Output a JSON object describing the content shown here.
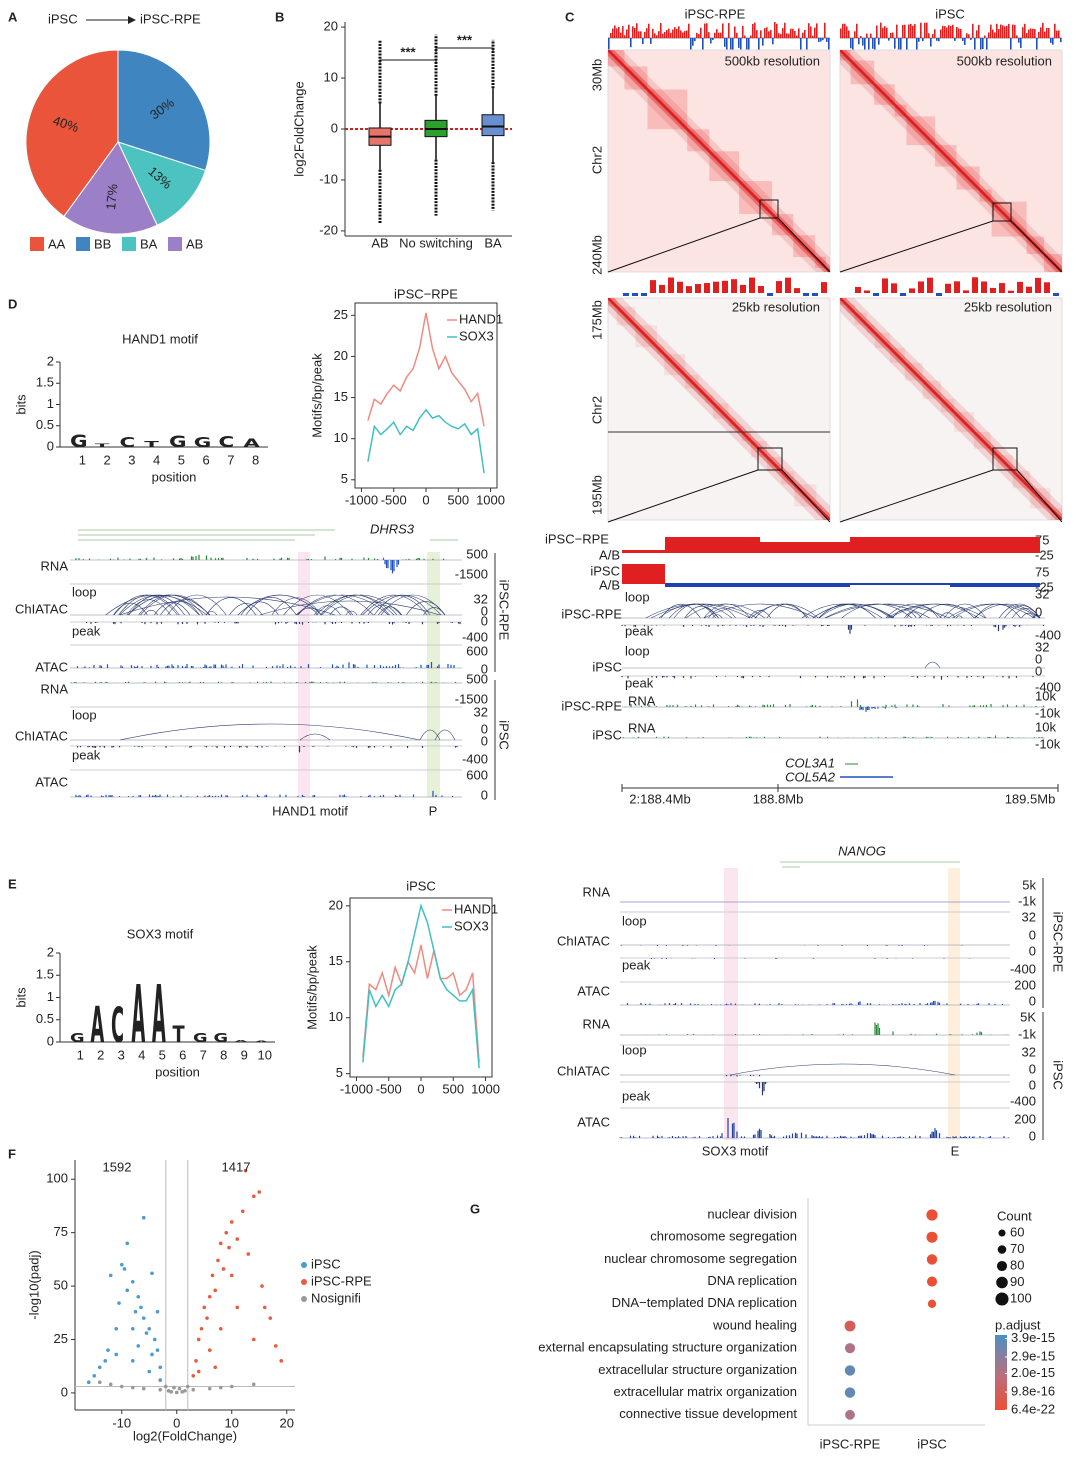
{
  "figure": {
    "panel_labels": [
      "A",
      "B",
      "C",
      "D",
      "E",
      "F",
      "G"
    ],
    "motifs": [
      {
        "title": "HAND1 motif",
        "ylabel": "bits",
        "xlabel": "position",
        "yticks": [
          0,
          0.5,
          1,
          1.5,
          2
        ],
        "positions": [
          1,
          2,
          3,
          4,
          5,
          6,
          7,
          8
        ],
        "letters": [
          "G",
          "T",
          "C",
          "T",
          "G",
          "G",
          "C",
          "A"
        ],
        "heights": [
          0.45,
          0.12,
          0.35,
          0.2,
          0.42,
          0.36,
          0.4,
          0.3
        ]
      },
      {
        "title": "SOX3 motif",
        "ylabel": "bits",
        "xlabel": "position",
        "yticks": [
          0,
          0.5,
          1,
          1.5,
          2
        ],
        "positions": [
          1,
          2,
          3,
          4,
          5,
          6,
          7,
          8,
          9,
          10
        ],
        "letters": [
          "G",
          "A",
          "C",
          "A",
          "A",
          "T",
          "G",
          "G",
          "A",
          "A"
        ],
        "heights": [
          0.3,
          1.25,
          1.2,
          2,
          2,
          0.55,
          0.3,
          0.3,
          0.06,
          0.05
        ]
      }
    ],
    "hic": {
      "columns": [
        "iPSC-RPE",
        "iPSC"
      ],
      "top": {
        "resolution": "500kb resolution",
        "start": "30Mb",
        "chr": "Chr2",
        "end": "240Mb"
      },
      "bottom": {
        "resolution": "25kb resolution",
        "start": "175Mb",
        "chr": "Chr2",
        "end": "195Mb"
      }
    },
    "tracks_c": {
      "left_labels": [
        "iPSC−RPE",
        "A/B",
        "iPSC",
        "A/B",
        "loop",
        "iPSC-RPE",
        "peak",
        "loop",
        "iPSC",
        "peak",
        "iPSC-RPE",
        "RNA",
        "iPSC",
        "RNA"
      ],
      "scale_labels": [
        "75",
        "-25",
        "75",
        "-25",
        "32",
        "0",
        "-400",
        "32",
        "0",
        "0",
        "-400",
        "10k",
        "-10k",
        "10k",
        "-10k"
      ],
      "genes": [
        "COL3A1",
        "COL5A2"
      ],
      "axis_labels": [
        "2:188.4Mb",
        "188.8Mb",
        "189.5Mb"
      ]
    },
    "tracks_d": {
      "gene": "DHRS3",
      "row_labels": [
        "RNA",
        "loop",
        "ChIATAC",
        "peak",
        "ATAC",
        "RNA",
        "loop",
        "ChIATAC",
        "peak",
        "ATAC"
      ],
      "scale_labels": [
        "500",
        "-1500",
        "32",
        "0",
        "0",
        "-400",
        "600",
        "0",
        "500",
        "-1500",
        "32",
        "0",
        "0",
        "-400",
        "600",
        "0"
      ],
      "groups": [
        "iPSC-RPE",
        "iPSC"
      ],
      "highlights": [
        "HAND1 motif",
        "P"
      ]
    },
    "tracks_e": {
      "gene": "NANOG",
      "row_labels": [
        "RNA",
        "loop",
        "ChIATAC",
        "peak",
        "ATAC",
        "RNA",
        "loop",
        "ChIATAC",
        "peak",
        "ATAC"
      ],
      "scale_labels": [
        "5k",
        "-1k",
        "32",
        "0",
        "0",
        "-400",
        "200",
        "0",
        "5K",
        "-1k",
        "32",
        "0",
        "0",
        "-400",
        "200",
        "0"
      ],
      "groups": [
        "iPSC-RPE",
        "iPSC"
      ],
      "highlights": [
        "SOX3 motif",
        "E"
      ]
    }
  },
  "chart_data": [
    {
      "type": "pie",
      "title_from": "iPSC",
      "title_to": "iPSC-RPE",
      "categories": [
        "AA",
        "BB",
        "BA",
        "AB"
      ],
      "values": [
        40,
        30,
        13,
        17
      ],
      "value_labels": [
        "40%",
        "30%",
        "13%",
        "17%"
      ],
      "colors": [
        "#e9543a",
        "#3f86c0",
        "#4cc3c0",
        "#9b80c8"
      ]
    },
    {
      "type": "box",
      "ylabel": "log2FoldChange",
      "categories": [
        "AB",
        "No switching",
        "BA"
      ],
      "colors": [
        "#e8756a",
        "#2ca02c",
        "#6a8fd0"
      ],
      "q1": [
        -3.2,
        -1.5,
        -1.3
      ],
      "median": [
        -1.5,
        0,
        0.5
      ],
      "q3": [
        0.2,
        1.7,
        2.8
      ],
      "whisker_low": [
        -8,
        -6,
        -6.5
      ],
      "whisker_high": [
        5,
        6.5,
        8
      ],
      "min": [
        -18.5,
        -17,
        -16
      ],
      "max": [
        17.5,
        18.5,
        17.5
      ],
      "ylim": [
        -21,
        21
      ],
      "yticks": [
        -20,
        -10,
        0,
        10,
        20
      ],
      "reference_line": 0,
      "annotations": [
        "***",
        "***"
      ]
    },
    {
      "type": "line",
      "title": "iPSC−RPE",
      "ylabel": "Motifs/bp/peak",
      "x": [
        -900,
        -800,
        -700,
        -600,
        -500,
        -400,
        -300,
        -200,
        -100,
        0,
        100,
        200,
        300,
        400,
        500,
        600,
        700,
        800,
        900
      ],
      "series": [
        {
          "name": "HAND1",
          "color": "#f08a80",
          "values": [
            12.2,
            14.8,
            14.2,
            15.5,
            16.5,
            15.8,
            17.5,
            18.5,
            21,
            25.3,
            21,
            18.5,
            20,
            18,
            17,
            16,
            14.5,
            15.5,
            11.5
          ]
        },
        {
          "name": "SOX3",
          "color": "#40c0c0",
          "values": [
            7.2,
            11.5,
            10.5,
            11.2,
            12,
            10.5,
            11.5,
            11,
            12.5,
            13.5,
            12.5,
            12.8,
            12,
            11.5,
            11.2,
            11.8,
            10.5,
            11.2,
            5.8
          ]
        }
      ],
      "xlim": [
        -1100,
        1100
      ],
      "xticks": [
        -1000,
        -500,
        0,
        500,
        1000
      ],
      "ylim": [
        4,
        26.5
      ],
      "yticks": [
        5,
        10,
        15,
        20,
        25
      ]
    },
    {
      "type": "line",
      "title": "iPSC",
      "ylabel": "Motifs/bp/peak",
      "x": [
        -900,
        -800,
        -700,
        -600,
        -500,
        -400,
        -300,
        -200,
        -100,
        0,
        100,
        200,
        300,
        400,
        500,
        600,
        700,
        800,
        900
      ],
      "series": [
        {
          "name": "HAND1",
          "color": "#f08a80",
          "values": [
            6.5,
            13,
            12.5,
            14,
            12,
            14.5,
            13,
            15,
            14,
            16.5,
            13.5,
            16,
            13.5,
            13.5,
            14,
            12,
            12.5,
            14,
            6
          ]
        },
        {
          "name": "SOX3",
          "color": "#40c0c0",
          "values": [
            6,
            12.5,
            11,
            12,
            11,
            12.5,
            13,
            15,
            17.5,
            20,
            18.5,
            16,
            13.5,
            12.5,
            12,
            11.5,
            11.5,
            12.5,
            5.5
          ]
        }
      ],
      "xlim": [
        -1100,
        1100
      ],
      "xticks": [
        -1000,
        -500,
        0,
        500,
        1000
      ],
      "ylim": [
        4.7,
        20.7
      ],
      "yticks": [
        5,
        10,
        15,
        20
      ]
    },
    {
      "type": "scatter",
      "xlabel": "log2(FoldChange)",
      "ylabel": "-log10(padj)",
      "count_labels": [
        1592,
        1417
      ],
      "xlim": [
        -18.5,
        21.5
      ],
      "xticks": [
        -10,
        0,
        10,
        20
      ],
      "ylim": [
        -8,
        109
      ],
      "yticks": [
        0,
        25,
        50,
        75,
        100
      ],
      "cutoff_x": [
        -2,
        2
      ],
      "cutoff_y": 3,
      "series": [
        {
          "name": "iPSC",
          "color": "#4a9bd0",
          "x": [
            -3,
            -3.5,
            -4,
            -4.5,
            -5,
            -5.5,
            -6,
            -6.5,
            -7,
            -7.5,
            -8,
            -8,
            -9,
            -9.5,
            -10,
            -10.5,
            -11,
            -12,
            -12.5,
            -13,
            -14,
            -15,
            -16,
            -9,
            -6,
            -4.5,
            -3.5,
            -7,
            -11,
            -5,
            -8,
            -3
          ],
          "values": [
            12,
            20,
            25,
            18,
            30,
            28,
            35,
            40,
            45,
            38,
            52,
            30,
            48,
            58,
            60,
            42,
            30,
            55,
            20,
            15,
            12,
            8,
            5,
            70,
            82,
            56,
            38,
            22,
            18,
            10,
            15,
            6
          ]
        },
        {
          "name": "iPSC-RPE",
          "color": "#ea5a3c",
          "x": [
            3,
            3.5,
            4,
            4.5,
            5,
            5.5,
            6,
            6.5,
            7,
            7.5,
            8,
            8.5,
            9,
            9.5,
            10,
            11,
            12,
            13,
            14,
            15,
            15.5,
            16,
            17,
            18,
            12.5,
            10,
            6,
            8,
            11,
            14,
            4,
            19,
            7
          ],
          "values": [
            8,
            15,
            25,
            30,
            40,
            35,
            45,
            55,
            48,
            62,
            70,
            58,
            75,
            68,
            80,
            72,
            85,
            65,
            92,
            94,
            50,
            40,
            35,
            22,
            104,
            55,
            20,
            30,
            40,
            25,
            10,
            15,
            12
          ]
        },
        {
          "name": "Nosignifi",
          "color": "#999999",
          "x": [
            -14,
            -10,
            -6,
            -3,
            -1.5,
            -1,
            0,
            1,
            1.5,
            3,
            6,
            10,
            14,
            -12,
            -2,
            2,
            0.5,
            -0.5,
            8,
            -8
          ],
          "values": [
            5,
            3,
            2,
            1.5,
            1,
            0.5,
            0.2,
            0.5,
            1,
            1.5,
            2,
            3,
            4,
            4,
            3,
            3,
            2,
            2.5,
            2.5,
            2.5
          ]
        }
      ]
    },
    {
      "type": "dot",
      "categories": [
        "nuclear division",
        "chromosome segregation",
        "nuclear chromosome segregation",
        "DNA replication",
        "DNA−templated DNA replication",
        "wound healing",
        "external encapsulating structure organization",
        "extracellular structure organization",
        "extracellular matrix organization",
        "connective tissue development"
      ],
      "series": [
        {
          "name": "iPSC-RPE",
          "values": [
            null,
            null,
            null,
            null,
            null,
            85,
            80,
            82,
            82,
            78
          ],
          "padj": [
            null,
            null,
            null,
            null,
            null,
            8.5e-16,
            2.1e-15,
            3.6e-15,
            3.6e-15,
            2.2e-15
          ]
        },
        {
          "name": "iPSC",
          "values": [
            88,
            86,
            82,
            80,
            68,
            null,
            null,
            null,
            null,
            null
          ],
          "padj": [
            6.4e-22,
            1e-21,
            2e-21,
            5e-20,
            3e-19,
            null,
            null,
            null,
            null,
            null
          ]
        }
      ],
      "size_title": "Count",
      "size_ticks": [
        60,
        70,
        80,
        90,
        100
      ],
      "color_title": "p.adjust",
      "clim": [
        6.4e-22,
        4.1e-15
      ],
      "color_ticks": [
        3.9e-15,
        2.9e-15,
        {
          "value": 2e-15,
          "label": "2.0e-15"
        },
        9.8e-16,
        6.4e-22
      ],
      "colors": [
        "#ea5036",
        "#b57182",
        "#4a90c4"
      ]
    }
  ]
}
